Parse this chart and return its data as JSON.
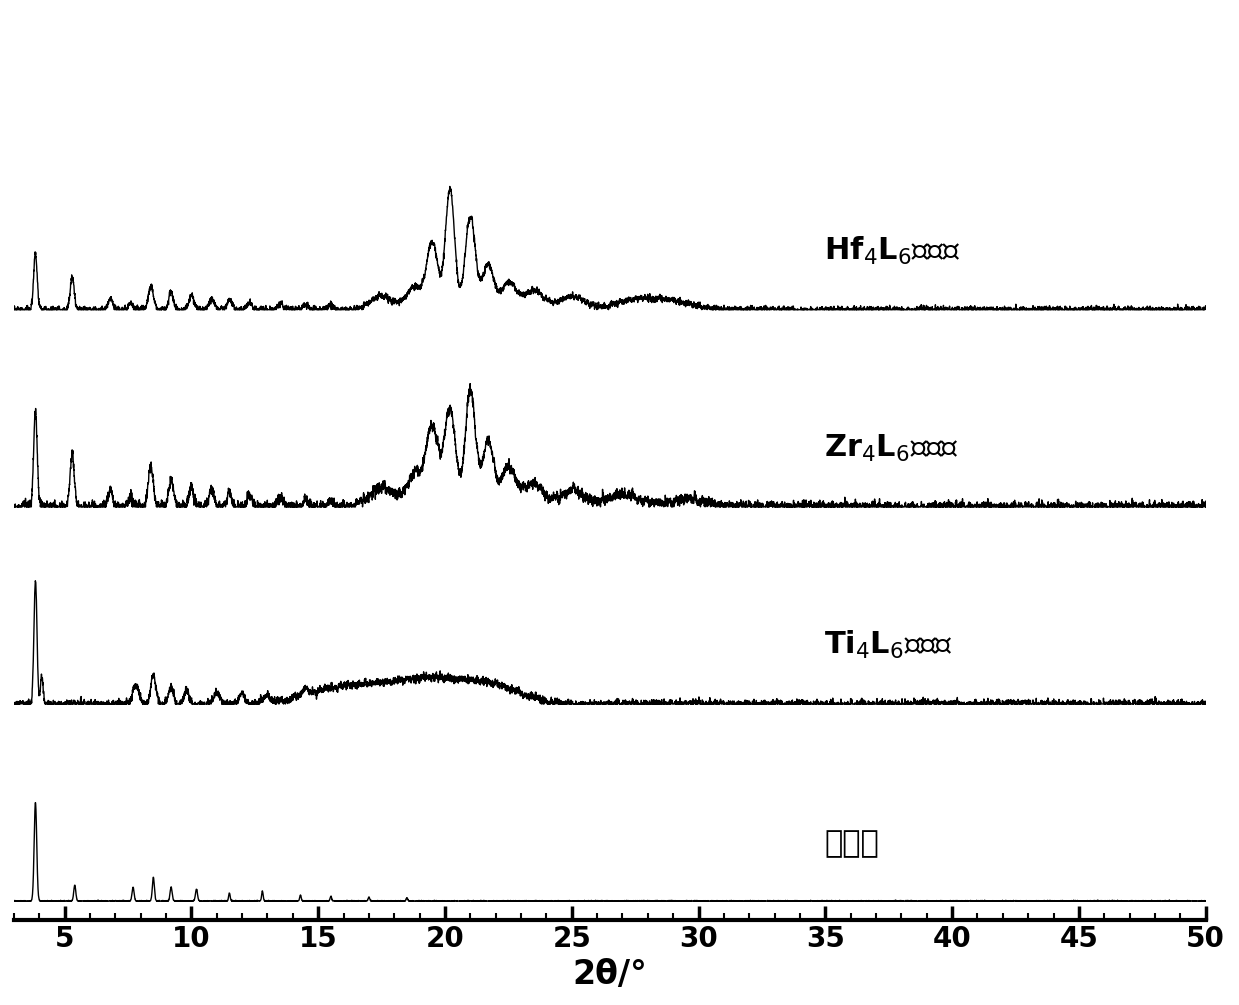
{
  "xlim": [
    3,
    50
  ],
  "xticks": [
    5,
    10,
    15,
    20,
    25,
    30,
    35,
    40,
    45,
    50
  ],
  "xlabel": "2θ/°",
  "background_color": "#ffffff",
  "line_color": "#000000",
  "offsets": [
    0.0,
    1.6,
    3.2,
    4.8
  ],
  "label_fontsize": 22,
  "xlabel_fontsize": 24,
  "tick_fontsize": 20
}
